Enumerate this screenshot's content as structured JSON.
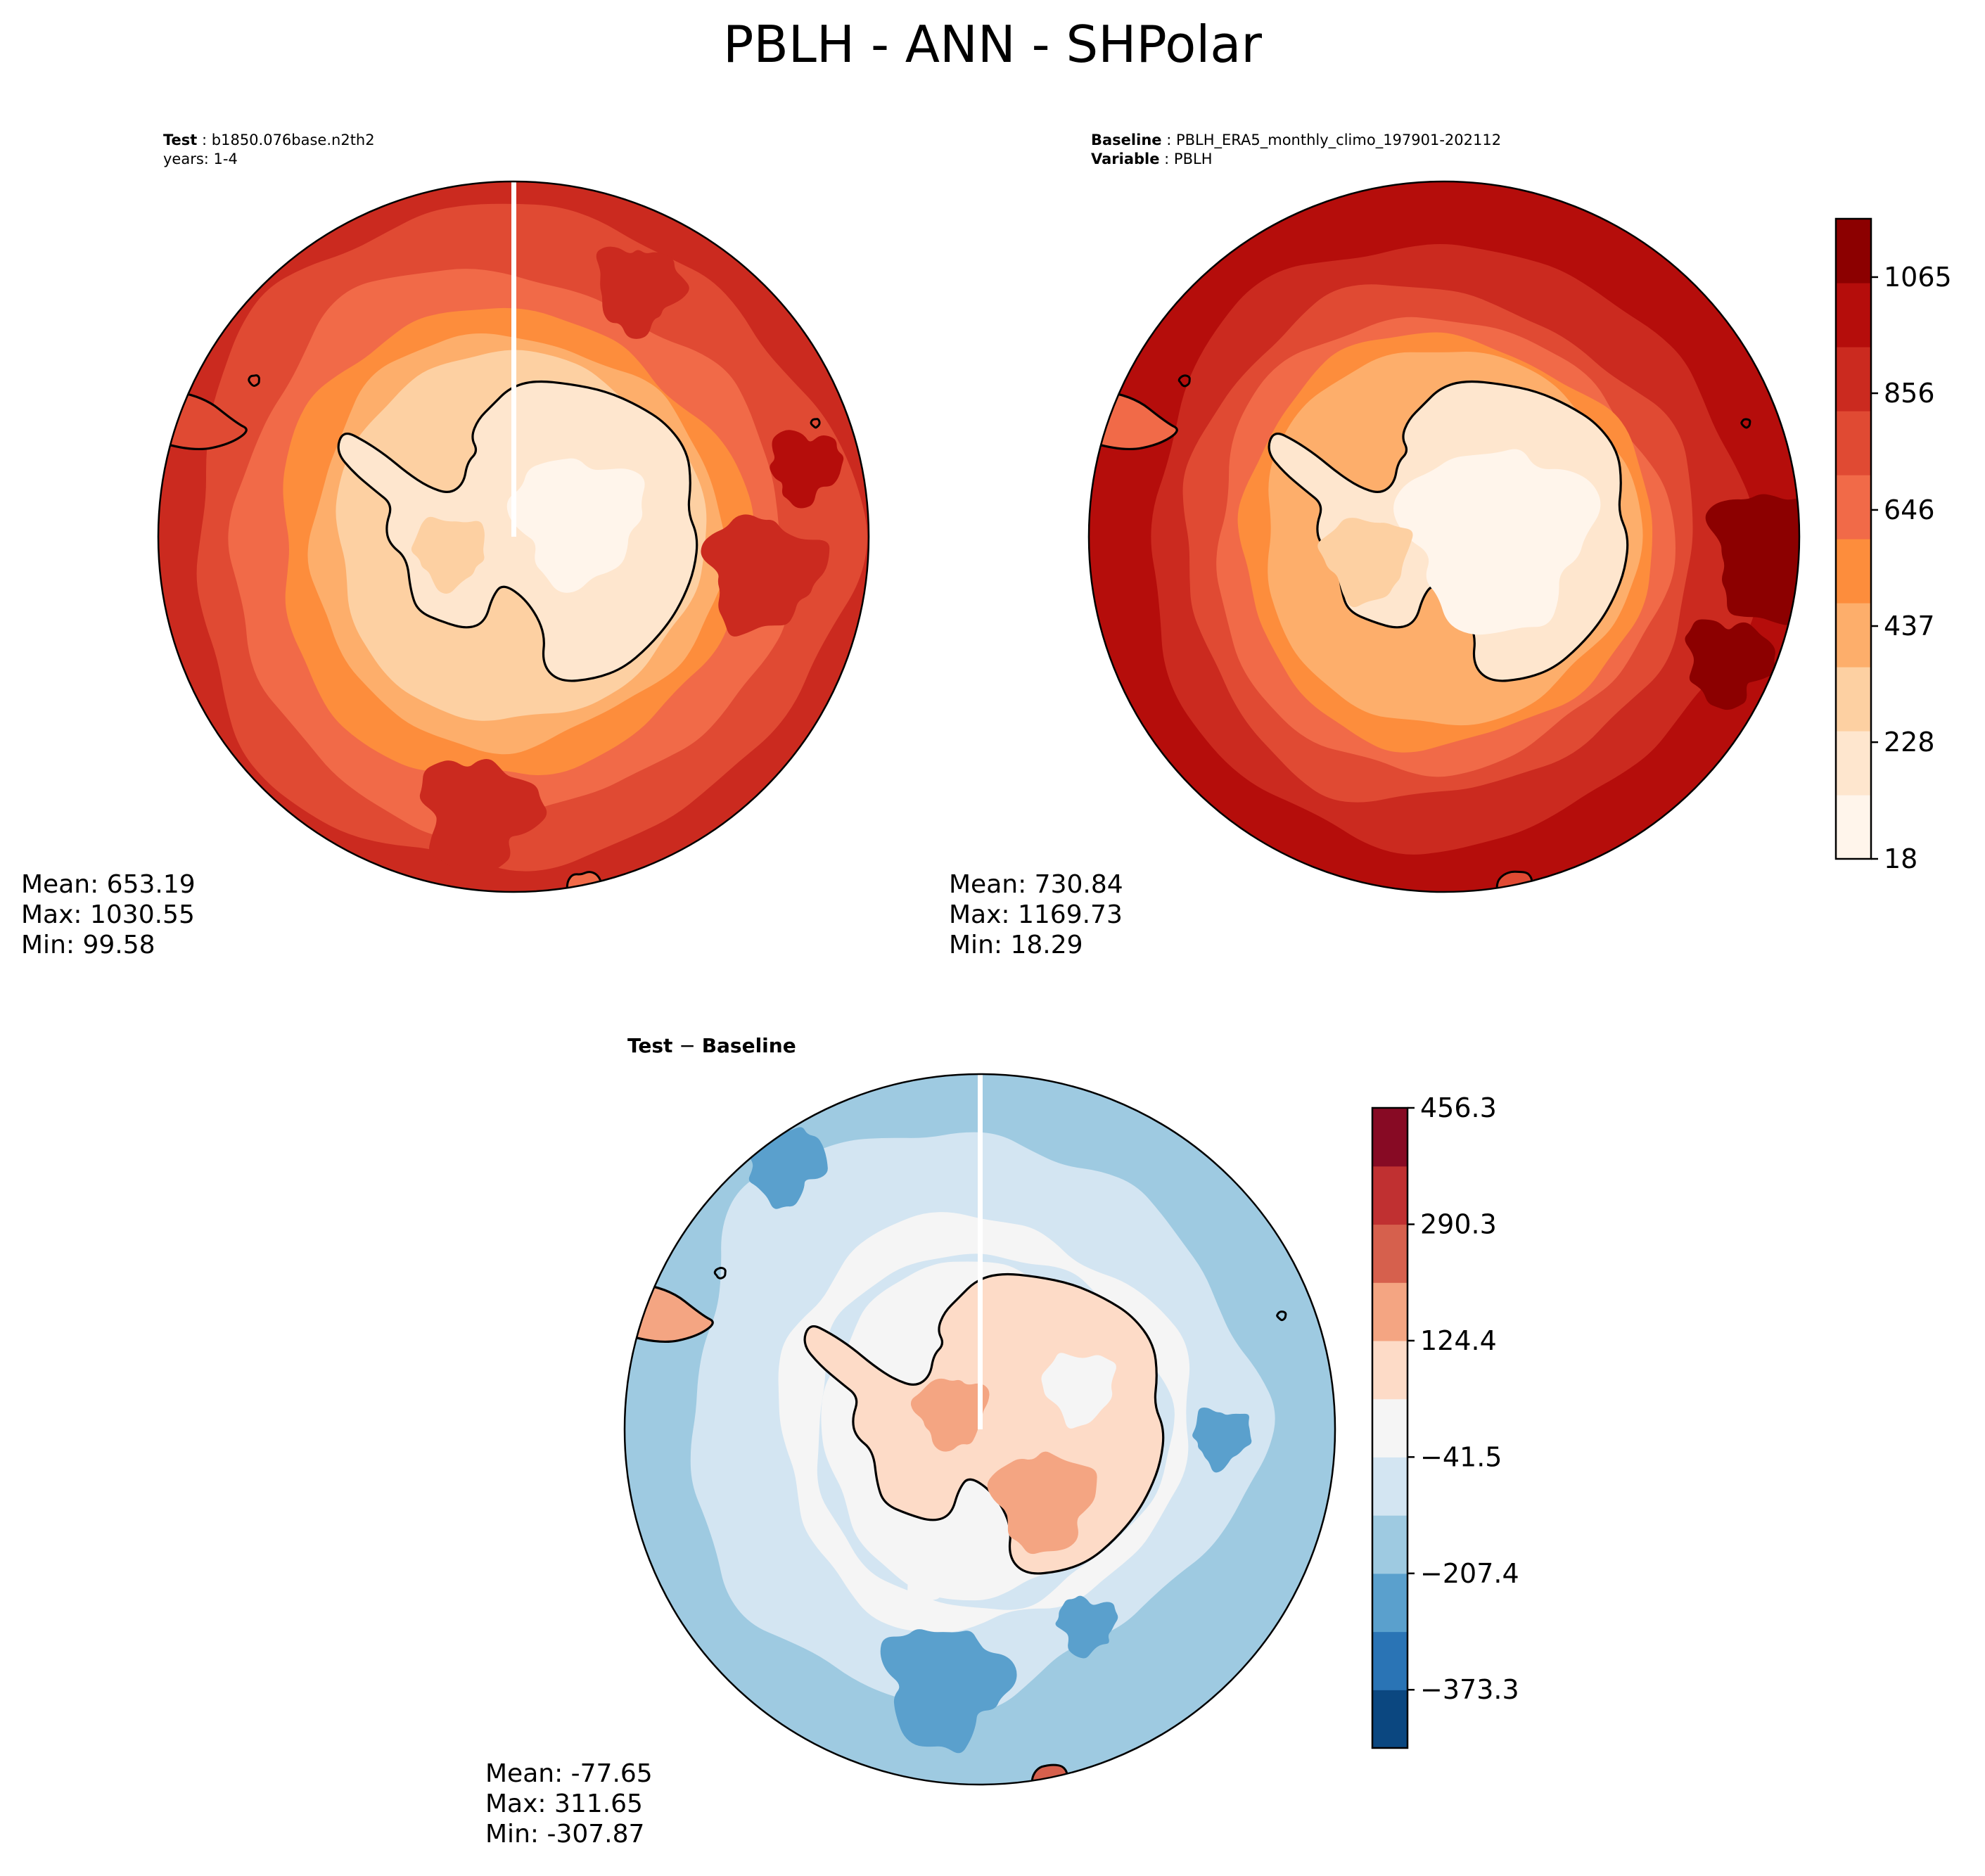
{
  "figure_title": "PBLH - ANN - SHPolar",
  "panels": {
    "test": {
      "label_bold": "Test",
      "label_value": "b1850.076base.n2th2",
      "label_line2": "years: 1-4",
      "stats": {
        "mean": "Mean: 653.19",
        "max": "Max: 1030.55",
        "min": "Min: 99.58"
      }
    },
    "baseline": {
      "label_bold": "Baseline",
      "label_value": "PBLH_ERA5_monthly_climo_197901-202112",
      "label2_bold": "Variable",
      "label2_value": "PBLH",
      "stats": {
        "mean": "Mean: 730.84",
        "max": "Max: 1169.73",
        "min": "Min: 18.29"
      }
    },
    "diff": {
      "label_bold_a": "Test",
      "label_sep": " − ",
      "label_bold_b": "Baseline",
      "stats": {
        "mean": "Mean: -77.65",
        "max": "Max: 311.65",
        "min": "Min: -307.87"
      }
    }
  },
  "chart_data": [
    {
      "type": "heatmap",
      "projection": "south-polar-stereographic",
      "variable": "PBLH",
      "panel": "test",
      "mean": 653.19,
      "max": 1030.55,
      "min": 99.58
    },
    {
      "type": "heatmap",
      "projection": "south-polar-stereographic",
      "variable": "PBLH",
      "panel": "baseline",
      "mean": 730.84,
      "max": 1169.73,
      "min": 18.29,
      "colorbar": {
        "ticks": [
          "18",
          "228",
          "437",
          "646",
          "856",
          "1065"
        ],
        "tick_values": [
          18,
          228,
          437,
          646,
          856,
          1065
        ],
        "range": [
          18,
          1170
        ],
        "colors": [
          "#fff5eb",
          "#fee6ce",
          "#fdd0a2",
          "#fdae6b",
          "#fd8d3c",
          "#f16a48",
          "#e04a33",
          "#cb2a1f",
          "#b50d0b",
          "#8c0000"
        ]
      }
    },
    {
      "type": "heatmap",
      "projection": "south-polar-stereographic",
      "variable": "PBLH",
      "panel": "diff",
      "mean": -77.65,
      "max": 311.65,
      "min": -307.87,
      "colorbar": {
        "ticks": [
          "456.3",
          "290.3",
          "124.4",
          "−41.5",
          "−207.4",
          "−373.3"
        ],
        "tick_values": [
          456.3,
          290.3,
          124.4,
          -41.5,
          -207.4,
          -373.3
        ],
        "range": [
          -456.3,
          456.3
        ],
        "colors": [
          "#0b4780",
          "#2a74b5",
          "#5aa0cd",
          "#9ecae1",
          "#d3e5f2",
          "#f5f5f5",
          "#fddbc7",
          "#f4a582",
          "#d6604d",
          "#c03031",
          "#870a24"
        ]
      }
    }
  ]
}
